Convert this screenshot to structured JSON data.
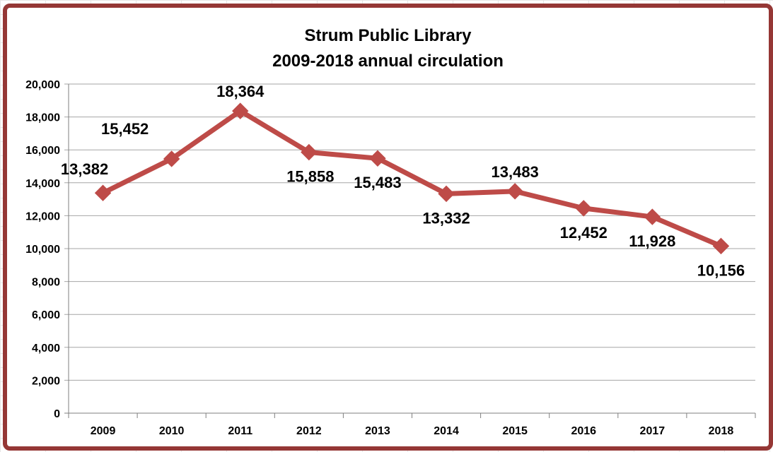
{
  "chart_data": {
    "type": "line",
    "title": "Strum Public Library",
    "subtitle": "2009-2018 annual circulation",
    "xlabel": "",
    "ylabel": "",
    "categories": [
      "2009",
      "2010",
      "2011",
      "2012",
      "2013",
      "2014",
      "2015",
      "2016",
      "2017",
      "2018"
    ],
    "series": [
      {
        "values": [
          13382,
          15452,
          18364,
          15858,
          15483,
          13332,
          13483,
          12452,
          11928,
          10156
        ]
      }
    ],
    "data_labels": [
      "13,382",
      "15,452",
      "18,364",
      "15,858",
      "15,483",
      "13,332",
      "13,483",
      "12,452",
      "11,928",
      "10,156"
    ],
    "label_positions": [
      "above",
      "above",
      "above",
      "below",
      "below",
      "below",
      "above",
      "below",
      "below",
      "below"
    ],
    "ylim": [
      0,
      20000
    ],
    "yticks": [
      0,
      2000,
      4000,
      6000,
      8000,
      10000,
      12000,
      14000,
      16000,
      18000,
      20000
    ],
    "ytick_labels": [
      "0",
      "2,000",
      "4,000",
      "6,000",
      "8,000",
      "10,000",
      "12,000",
      "14,000",
      "16,000",
      "18,000",
      "20,000"
    ],
    "grid": true,
    "legend": "none",
    "colors": {
      "line": "#BE4B48",
      "frame": "#953735",
      "grid": "#A6A6A6"
    }
  }
}
